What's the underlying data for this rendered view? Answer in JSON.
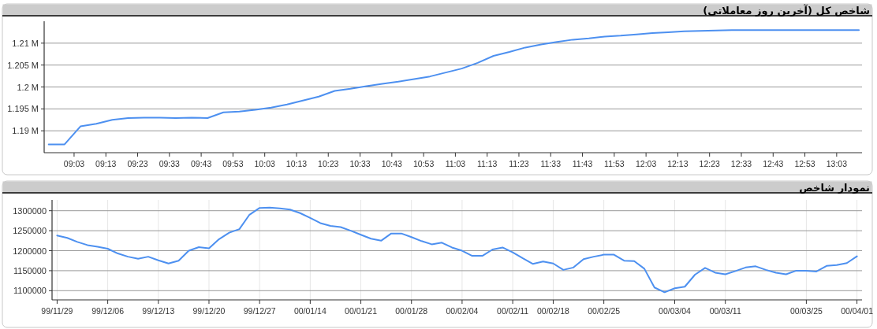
{
  "chart_data": [
    {
      "type": "line",
      "title": "شاخص کل (آخرین روز معاملاتی)",
      "color": "#4d90f0",
      "grid": "y",
      "x": [
        8.9167,
        9.0,
        9.0833,
        9.1667,
        9.25,
        9.3333,
        9.4167,
        9.5,
        9.5833,
        9.6667,
        9.75,
        9.8333,
        9.9167,
        10.0,
        10.0833,
        10.1667,
        10.25,
        10.3333,
        10.4167,
        10.5,
        10.5833,
        10.6667,
        10.75,
        10.8333,
        10.9167,
        11.0,
        11.0833,
        11.1667,
        11.25,
        11.3333,
        11.4167,
        11.5,
        11.5833,
        11.6667,
        11.75,
        11.8333,
        11.9167,
        12.0,
        12.0833,
        12.1667,
        12.25,
        12.3333,
        12.4167,
        12.5,
        13.1667
      ],
      "values": [
        1186900,
        1186900,
        1191000,
        1191600,
        1192500,
        1192900,
        1193000,
        1193000,
        1192900,
        1193000,
        1192900,
        1194200,
        1194400,
        1194800,
        1195300,
        1196000,
        1196900,
        1197800,
        1199100,
        1199600,
        1200200,
        1200700,
        1201200,
        1201800,
        1202400,
        1203300,
        1204200,
        1205500,
        1207100,
        1208000,
        1209000,
        1209700,
        1210300,
        1210800,
        1211100,
        1211500,
        1211700,
        1212000,
        1212300,
        1212500,
        1212700,
        1212800,
        1212900,
        1213000,
        1213000
      ],
      "xlim": [
        8.893,
        13.183
      ],
      "ylim": [
        1185000,
        1215000
      ],
      "yticks": [
        {
          "value": 1190000,
          "label": "1.19 M"
        },
        {
          "value": 1195000,
          "label": "1.195 M"
        },
        {
          "value": 1200000,
          "label": "1.2 M"
        },
        {
          "value": 1205000,
          "label": "1.205 M"
        },
        {
          "value": 1210000,
          "label": "1.21 M"
        }
      ],
      "xticks": [
        {
          "value": 9.05,
          "label": "09:03"
        },
        {
          "value": 9.2167,
          "label": "09:13"
        },
        {
          "value": 9.3833,
          "label": "09:23"
        },
        {
          "value": 9.55,
          "label": "09:33"
        },
        {
          "value": 9.7167,
          "label": "09:43"
        },
        {
          "value": 9.8833,
          "label": "09:53"
        },
        {
          "value": 10.05,
          "label": "10:03"
        },
        {
          "value": 10.2167,
          "label": "10:13"
        },
        {
          "value": 10.3833,
          "label": "10:23"
        },
        {
          "value": 10.55,
          "label": "10:33"
        },
        {
          "value": 10.7167,
          "label": "10:43"
        },
        {
          "value": 10.8833,
          "label": "10:53"
        },
        {
          "value": 11.05,
          "label": "11:03"
        },
        {
          "value": 11.2167,
          "label": "11:13"
        },
        {
          "value": 11.3833,
          "label": "11:23"
        },
        {
          "value": 11.55,
          "label": "11:33"
        },
        {
          "value": 11.7167,
          "label": "11:43"
        },
        {
          "value": 11.8833,
          "label": "11:53"
        },
        {
          "value": 12.05,
          "label": "12:03"
        },
        {
          "value": 12.2167,
          "label": "12:13"
        },
        {
          "value": 12.3833,
          "label": "12:23"
        },
        {
          "value": 12.55,
          "label": "12:33"
        },
        {
          "value": 12.7167,
          "label": "12:43"
        },
        {
          "value": 12.8833,
          "label": "12:53"
        },
        {
          "value": 13.05,
          "label": "13:03"
        }
      ]
    },
    {
      "type": "line",
      "title": "نمودار شاخص",
      "color": "#4d90f0",
      "grid": true,
      "categories": [
        "99/11/29",
        null,
        null,
        null,
        null,
        "99/12/06",
        null,
        null,
        null,
        null,
        "99/12/13",
        null,
        null,
        null,
        null,
        "99/12/20",
        null,
        null,
        null,
        null,
        "99/12/27",
        null,
        null,
        null,
        null,
        "00/01/14",
        null,
        null,
        null,
        null,
        "00/01/21",
        null,
        null,
        null,
        null,
        "00/01/28",
        null,
        null,
        null,
        null,
        "00/02/04",
        null,
        null,
        null,
        null,
        "00/02/11",
        null,
        null,
        null,
        "00/02/18",
        null,
        null,
        null,
        null,
        "00/02/25",
        null,
        null,
        null,
        null,
        null,
        null,
        "00/03/04",
        null,
        null,
        null,
        null,
        "00/03/11",
        null,
        null,
        null,
        null,
        null,
        null,
        null,
        "00/03/25",
        null,
        null,
        null,
        null,
        "00/04/01"
      ],
      "values": [
        1238000,
        1232000,
        1222000,
        1214000,
        1210000,
        1205000,
        1193000,
        1185000,
        1180000,
        1185000,
        1176000,
        1168000,
        1175000,
        1200000,
        1209000,
        1206000,
        1229000,
        1245000,
        1254000,
        1290000,
        1307000,
        1308000,
        1306000,
        1303000,
        1294000,
        1282000,
        1269000,
        1262000,
        1259000,
        1250000,
        1240000,
        1230000,
        1225000,
        1243000,
        1243000,
        1234000,
        1224000,
        1216000,
        1220000,
        1208000,
        1200000,
        1187000,
        1187000,
        1203000,
        1208000,
        1196000,
        1181000,
        1167000,
        1173000,
        1168000,
        1152000,
        1158000,
        1179000,
        1185000,
        1190000,
        1190000,
        1175000,
        1174000,
        1155000,
        1108000,
        1096000,
        1106000,
        1110000,
        1140000,
        1157000,
        1145000,
        1141000,
        1149000,
        1158000,
        1161000,
        1152000,
        1145000,
        1141000,
        1150000,
        1150000,
        1148000,
        1162000,
        1164000,
        1169000,
        1186000
      ],
      "ylim": [
        1077000,
        1327000
      ],
      "yticks": [
        1100000,
        1150000,
        1200000,
        1250000,
        1300000
      ]
    }
  ]
}
